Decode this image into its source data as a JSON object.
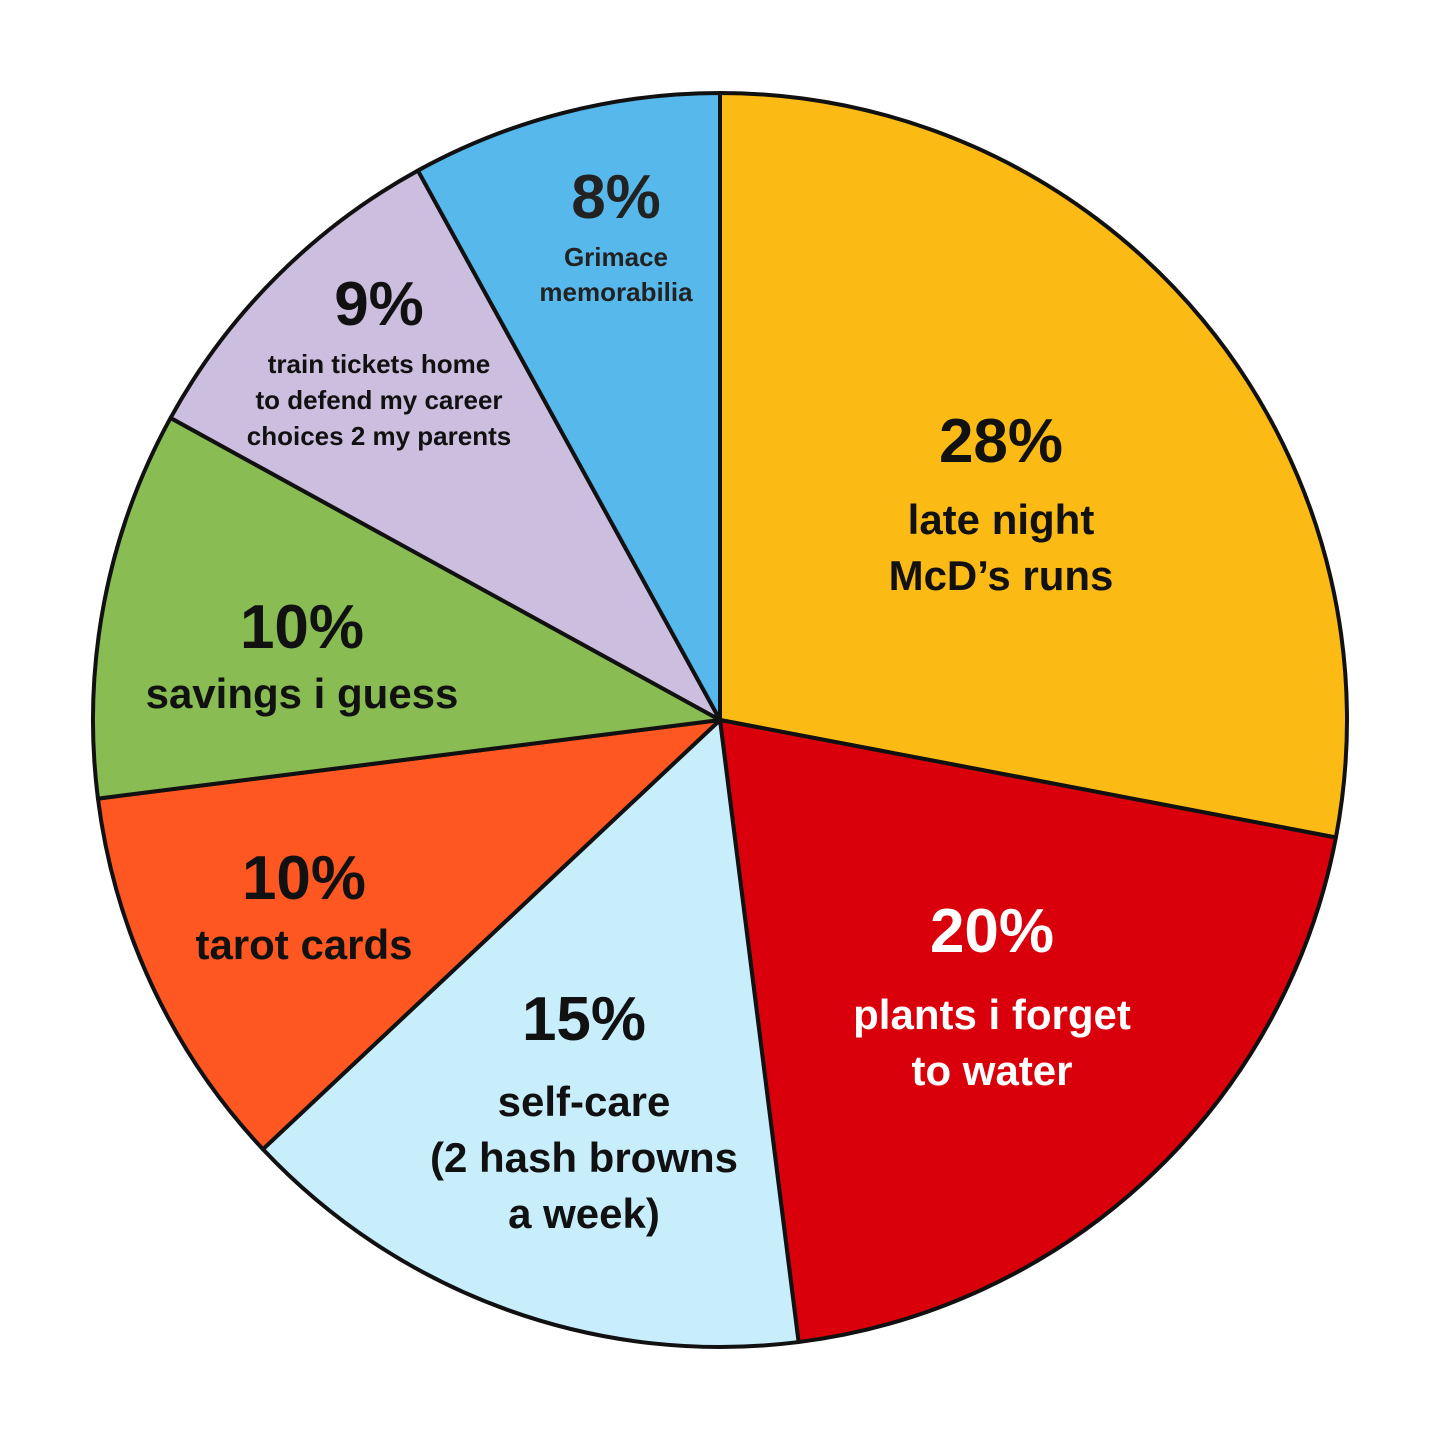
{
  "chart_data": {
    "type": "pie",
    "start": "12 o'clock, clockwise",
    "slices": [
      {
        "value": 28,
        "percent_label": "28%",
        "label_lines": [
          "late night",
          "McD’s runs"
        ],
        "color": "#FBBA14",
        "text_color": "#111111"
      },
      {
        "value": 20,
        "percent_label": "20%",
        "label_lines": [
          "plants i forget",
          "to water"
        ],
        "color": "#D9000B",
        "text_color": "#FFFFFF"
      },
      {
        "value": 15,
        "percent_label": "15%",
        "label_lines": [
          "self-care",
          "(2 hash browns",
          "a week)"
        ],
        "color": "#C8EEFC",
        "text_color": "#111111"
      },
      {
        "value": 10,
        "percent_label": "10%",
        "label_lines": [
          "tarot cards"
        ],
        "color": "#FE5722",
        "text_color": "#111111"
      },
      {
        "value": 10,
        "percent_label": "10%",
        "label_lines": [
          "savings i guess"
        ],
        "color": "#89BC52",
        "text_color": "#111111"
      },
      {
        "value": 9,
        "percent_label": "9%",
        "label_lines": [
          "train tickets home",
          "to defend my career",
          "choices 2 my parents"
        ],
        "color": "#CBBEDF",
        "text_color": "#111111"
      },
      {
        "value": 8,
        "percent_label": "8%",
        "label_lines": [
          "Grimace",
          "memorabilia"
        ],
        "color": "#57B8EB",
        "text_color": "#222222"
      }
    ]
  }
}
